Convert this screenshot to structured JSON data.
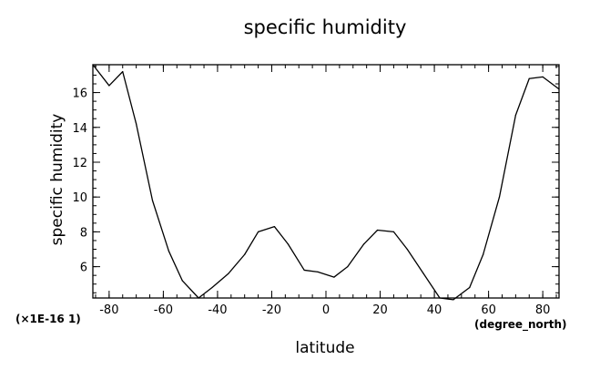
{
  "chart_data": {
    "type": "line",
    "title": "specific humidity",
    "xlabel": "latitude",
    "ylabel": "specific humidity",
    "x_unit_label": "(degree_north)",
    "y_scale_label": "(×1E-16 1)",
    "xlim": [
      -86,
      86
    ],
    "ylim": [
      4.2,
      17.6
    ],
    "x_ticks_major": [
      -80,
      -60,
      -40,
      -20,
      0,
      20,
      40,
      60,
      80
    ],
    "x_ticks_minor_step": 5,
    "y_ticks_major": [
      6,
      8,
      10,
      12,
      14,
      16
    ],
    "y_ticks_minor_step": 0.5,
    "grid": false,
    "series": [
      {
        "x": [
          -86,
          -80,
          -75,
          -70,
          -64,
          -58,
          -53,
          -47,
          -42,
          -36,
          -30,
          -25,
          -19,
          -14,
          -8,
          -3,
          3,
          8,
          14,
          19,
          25,
          30,
          36,
          42,
          47,
          53,
          58,
          64,
          70,
          75,
          80,
          86
        ],
        "y": [
          17.6,
          16.4,
          17.2,
          14.2,
          9.8,
          6.9,
          5.2,
          4.2,
          4.8,
          5.6,
          6.7,
          8.0,
          8.3,
          7.3,
          5.8,
          5.7,
          5.4,
          6.0,
          7.3,
          8.1,
          8.0,
          7.0,
          5.6,
          4.2,
          4.1,
          4.8,
          6.7,
          10.0,
          14.7,
          16.8,
          16.9,
          16.2
        ]
      }
    ]
  }
}
